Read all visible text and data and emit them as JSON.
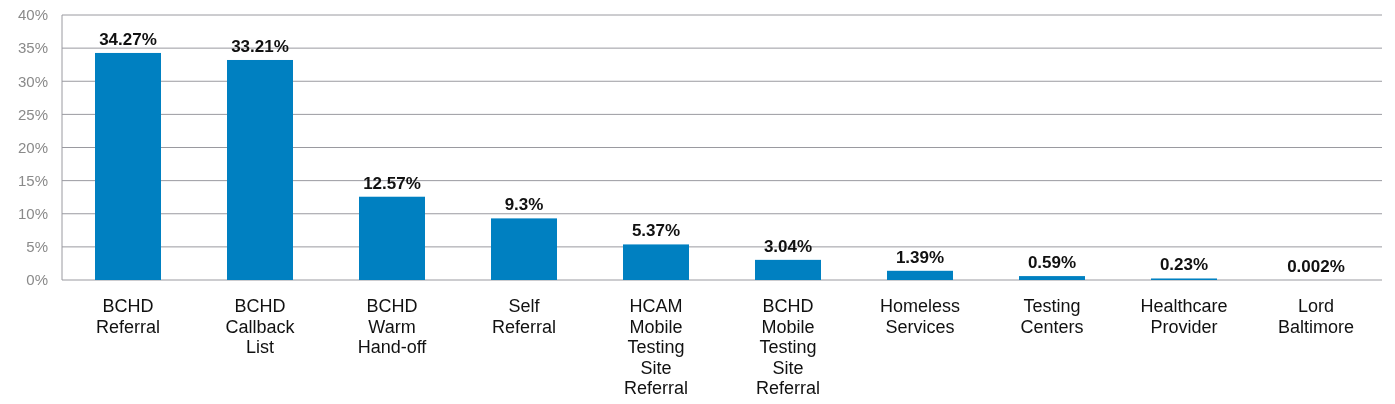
{
  "chart_data": {
    "type": "bar",
    "categories": [
      "BCHD\nReferral",
      "BCHD\nCallback\nList",
      "BCHD\nWarm\nHand-off",
      "Self\nReferral",
      "HCAM\nMobile\nTesting\nSite\nReferral",
      "BCHD\nMobile\nTesting\nSite\nReferral",
      "Homeless\nServices",
      "Testing\nCenters",
      "Healthcare\nProvider",
      "Lord\nBaltimore"
    ],
    "values": [
      34.27,
      33.21,
      12.57,
      9.3,
      5.37,
      3.04,
      1.39,
      0.59,
      0.23,
      0.002
    ],
    "value_labels": [
      "34.27%",
      "33.21%",
      "12.57%",
      "9.3%",
      "5.37%",
      "3.04%",
      "1.39%",
      "0.59%",
      "0.23%",
      "0.002%"
    ],
    "color": "#0080c1",
    "ylim": [
      0,
      40
    ],
    "yticks": [
      {
        "value": 0,
        "label": "0%"
      },
      {
        "value": 5,
        "label": "5%"
      },
      {
        "value": 10,
        "label": "10%"
      },
      {
        "value": 15,
        "label": "15%"
      },
      {
        "value": 20,
        "label": "20%"
      },
      {
        "value": 25,
        "label": "25%"
      },
      {
        "value": 30,
        "label": "30%"
      },
      {
        "value": 35,
        "label": "35%"
      },
      {
        "value": 40,
        "label": "40%"
      }
    ],
    "grid": "y"
  }
}
